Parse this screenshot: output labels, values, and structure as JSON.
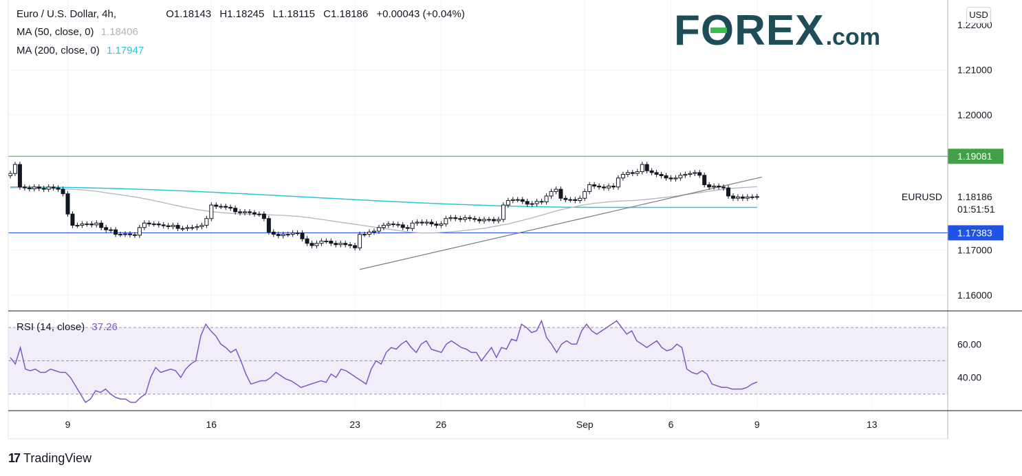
{
  "header": {
    "title": "Euro / U.S. Dollar, 4h,",
    "open": "O1.18143",
    "high": "H1.18245",
    "low": "L1.18115",
    "close": "C1.18186",
    "change": "+0.00043 (+0.04%)"
  },
  "indicators": {
    "ma50": {
      "label": "MA (50, close, 0)",
      "value": "1.18406",
      "color": "#b2b5be"
    },
    "ma200": {
      "label": "MA (200, close, 0)",
      "value": "1.17947",
      "color": "#26c6da"
    },
    "rsi": {
      "label": "RSI (14, close)",
      "value": "37.26",
      "color": "#7e57c2"
    }
  },
  "currency_button": "USD",
  "brand": {
    "part1": "F",
    "part2": "O",
    "part3": "REX",
    "suffix": ".com"
  },
  "footer": {
    "logo_mark": "17",
    "logo_text": "TradingView"
  },
  "chart_data": {
    "type": "candlestick",
    "symbol": "EURUSD",
    "last_price_label": "1.18186",
    "countdown": "01:51:51",
    "price_ticks": [
      "1.21000",
      "1.20000",
      "1.17000",
      "1.16000"
    ],
    "price_ticks_values": [
      1.21,
      1.2,
      1.17,
      1.16
    ],
    "top_tick_partial": "1.22000",
    "price_range": [
      1.1565,
      1.2255
    ],
    "levels": [
      {
        "value": 1.19081,
        "label": "1.19081",
        "color": "#43a047"
      },
      {
        "value": 1.17383,
        "label": "1.17383",
        "color": "#1e53e5"
      }
    ],
    "x_ticks": [
      {
        "label": "9",
        "index": 12
      },
      {
        "label": "16",
        "index": 42
      },
      {
        "label": "23",
        "index": 72
      },
      {
        "label": "26",
        "index": 90
      },
      {
        "label": "Sep",
        "index": 120
      },
      {
        "label": "6",
        "index": 138
      },
      {
        "label": "9",
        "index": 156
      },
      {
        "label": "13",
        "index": 180
      }
    ],
    "closes": [
      1.187,
      1.189,
      1.184,
      1.1838,
      1.1836,
      1.184,
      1.1837,
      1.1835,
      1.184,
      1.1838,
      1.1835,
      1.1825,
      1.178,
      1.1755,
      1.1755,
      1.1758,
      1.1758,
      1.1756,
      1.176,
      1.175,
      1.1745,
      1.1745,
      1.1735,
      1.1735,
      1.1736,
      1.1734,
      1.1733,
      1.175,
      1.176,
      1.1758,
      1.1758,
      1.1756,
      1.1754,
      1.1752,
      1.1755,
      1.1748,
      1.1748,
      1.175,
      1.175,
      1.1752,
      1.1755,
      1.177,
      1.18,
      1.1797,
      1.1797,
      1.1795,
      1.1793,
      1.1785,
      1.1783,
      1.1785,
      1.1783,
      1.178,
      1.178,
      1.177,
      1.174,
      1.1735,
      1.1732,
      1.1735,
      1.1735,
      1.1738,
      1.1738,
      1.1725,
      1.1715,
      1.171,
      1.1715,
      1.172,
      1.172,
      1.1715,
      1.1712,
      1.1715,
      1.1712,
      1.171,
      1.1705,
      1.1735,
      1.1735,
      1.174,
      1.1742,
      1.175,
      1.1755,
      1.1758,
      1.1757,
      1.1756,
      1.175,
      1.1748,
      1.176,
      1.1762,
      1.176,
      1.1762,
      1.1758,
      1.1755,
      1.1758,
      1.177,
      1.1772,
      1.177,
      1.1768,
      1.1772,
      1.177,
      1.1768,
      1.1765,
      1.1768,
      1.1768,
      1.1765,
      1.1768,
      1.18,
      1.181,
      1.1812,
      1.1812,
      1.1808,
      1.1802,
      1.1803,
      1.1808,
      1.1807,
      1.182,
      1.183,
      1.1835,
      1.1815,
      1.1812,
      1.1812,
      1.181,
      1.1815,
      1.183,
      1.1845,
      1.1842,
      1.184,
      1.1838,
      1.1842,
      1.184,
      1.186,
      1.1868,
      1.1872,
      1.187,
      1.1874,
      1.189,
      1.1876,
      1.1872,
      1.1868,
      1.1865,
      1.186,
      1.1858,
      1.186,
      1.1866,
      1.1868,
      1.187,
      1.1872,
      1.1866,
      1.1845,
      1.184,
      1.1842,
      1.184,
      1.1838,
      1.182,
      1.1815,
      1.1818,
      1.1815,
      1.1818,
      1.1818,
      1.18186
    ],
    "ma50": [
      1.1838,
      1.1839,
      1.1838,
      1.1837,
      1.1836,
      1.1835,
      1.1833,
      1.183,
      1.1826,
      1.1822,
      1.1818,
      1.1813,
      1.1807,
      1.1801,
      1.1795,
      1.179,
      1.1786,
      1.1783,
      1.1781,
      1.178,
      1.1779,
      1.1778,
      1.1777,
      1.1775,
      1.1772,
      1.1768,
      1.1764,
      1.176,
      1.1756,
      1.1752,
      1.1748,
      1.1744,
      1.174,
      1.1738,
      1.1738,
      1.174,
      1.1742,
      1.1745,
      1.1748,
      1.1753,
      1.1758,
      1.1765,
      1.1772,
      1.178,
      1.1788,
      1.1794,
      1.18,
      1.1804,
      1.1807,
      1.1809,
      1.181,
      1.1812,
      1.1815,
      1.1818,
      1.1822,
      1.1826,
      1.183,
      1.1834,
      1.1837,
      1.1839,
      1.18406
    ],
    "ma200_start": 1.184,
    "ma200_end": 1.17947,
    "trendline": {
      "from": [
        73,
        1.1657
      ],
      "to": [
        157,
        1.1862
      ]
    },
    "rsi_range": [
      20,
      80
    ],
    "rsi_ticks": [
      60,
      40
    ],
    "rsi_band": [
      70,
      30
    ],
    "rsi_mid": 50,
    "rsi_values": [
      52,
      48,
      58,
      45,
      44,
      45,
      43,
      43,
      45,
      44,
      43,
      43,
      40,
      35,
      30,
      25,
      27,
      32,
      31,
      33,
      30,
      28,
      27,
      27,
      25,
      25,
      28,
      30,
      40,
      46,
      43,
      44,
      45,
      44,
      40,
      45,
      48,
      50,
      65,
      72,
      68,
      65,
      60,
      58,
      55,
      57,
      50,
      42,
      36,
      37,
      38,
      38,
      40,
      43,
      41,
      39,
      38,
      36,
      34,
      35,
      36,
      37,
      38,
      37,
      42,
      40,
      45,
      44,
      42,
      40,
      38,
      36,
      45,
      50,
      48,
      55,
      58,
      57,
      60,
      62,
      58,
      55,
      60,
      62,
      57,
      56,
      55,
      60,
      62,
      60,
      58,
      57,
      55,
      55,
      50,
      54,
      58,
      52,
      58,
      57,
      63,
      62,
      72,
      70,
      67,
      68,
      74,
      64,
      60,
      55,
      60,
      62,
      60,
      60,
      68,
      72,
      68,
      66,
      68,
      70,
      72,
      74,
      70,
      66,
      68,
      62,
      60,
      58,
      60,
      62,
      58,
      56,
      57,
      60,
      58,
      45,
      43,
      42,
      44,
      42,
      36,
      35,
      34,
      34,
      33,
      33,
      33,
      34,
      36,
      37.26
    ]
  }
}
